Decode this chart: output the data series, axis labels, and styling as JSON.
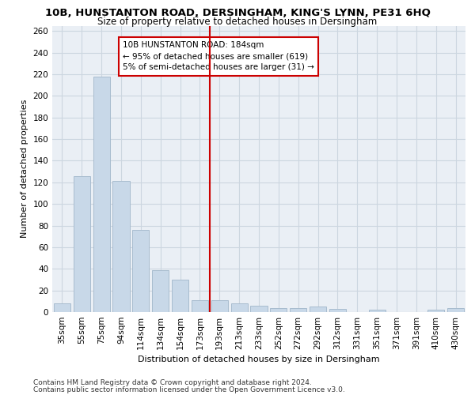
{
  "title": "10B, HUNSTANTON ROAD, DERSINGHAM, KING'S LYNN, PE31 6HQ",
  "subtitle": "Size of property relative to detached houses in Dersingham",
  "xlabel": "Distribution of detached houses by size in Dersingham",
  "ylabel": "Number of detached properties",
  "footer1": "Contains HM Land Registry data © Crown copyright and database right 2024.",
  "footer2": "Contains public sector information licensed under the Open Government Licence v3.0.",
  "categories": [
    "35sqm",
    "55sqm",
    "75sqm",
    "94sqm",
    "114sqm",
    "134sqm",
    "154sqm",
    "173sqm",
    "193sqm",
    "213sqm",
    "233sqm",
    "252sqm",
    "272sqm",
    "292sqm",
    "312sqm",
    "331sqm",
    "351sqm",
    "371sqm",
    "391sqm",
    "410sqm",
    "430sqm"
  ],
  "values": [
    8,
    126,
    218,
    121,
    76,
    39,
    30,
    11,
    11,
    8,
    6,
    4,
    4,
    5,
    3,
    0,
    2,
    0,
    0,
    2,
    4
  ],
  "bar_color": "#c8d8e8",
  "bar_edge_color": "#a8bccf",
  "vline_x_index": 8,
  "vline_color": "#cc0000",
  "annotation_line1": "10B HUNSTANTON ROAD: 184sqm",
  "annotation_line2": "← 95% of detached houses are smaller (619)",
  "annotation_line3": "5% of semi-detached houses are larger (31) →",
  "ylim": [
    0,
    265
  ],
  "yticks": [
    0,
    20,
    40,
    60,
    80,
    100,
    120,
    140,
    160,
    180,
    200,
    220,
    240,
    260
  ],
  "grid_color": "#ccd6e0",
  "bg_color": "#eaeff5",
  "title_fontsize": 9.5,
  "subtitle_fontsize": 8.5,
  "axis_label_fontsize": 8,
  "tick_fontsize": 7.5,
  "footer_fontsize": 6.5,
  "annotation_fontsize": 7.5
}
